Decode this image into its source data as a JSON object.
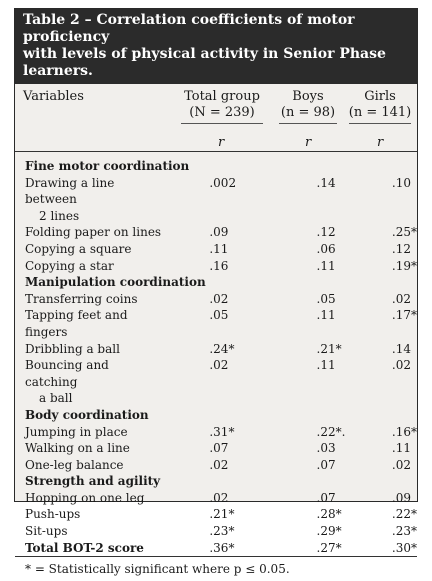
{
  "title_lines": [
    "Table 2 – Correlation coefficients of motor proficiency",
    "with levels of physical activity in Senior Phase learners."
  ],
  "header": {
    "variables": "Variables",
    "total_group": "Total group",
    "total_n": "(N = 239)",
    "boys": "Boys",
    "boys_n": "(n = 98)",
    "girls": "Girls",
    "girls_n": "(n = 141)",
    "r": "r"
  },
  "sections": [
    {
      "title": "Fine motor coordination",
      "rows": [
        {
          "label": "Drawing a line between",
          "label2": "2 lines",
          "total": ".002",
          "boys": ".14",
          "girls": ".10"
        },
        {
          "label": "Folding paper on lines",
          "total": ".09",
          "boys": ".12",
          "girls": ".25*"
        },
        {
          "label": "Copying a square",
          "total": ".11",
          "boys": ".06",
          "girls": ".12"
        },
        {
          "label": "Copying a star",
          "total": ".16",
          "boys": ".11",
          "girls": ".19*"
        }
      ]
    },
    {
      "title": "Manipulation coordination",
      "rows": [
        {
          "label": "Transferring coins",
          "total": ".02",
          "boys": ".05",
          "girls": ".02"
        },
        {
          "label": "Tapping feet and fingers",
          "total": ".05",
          "boys": ".11",
          "girls": ".17*"
        },
        {
          "label": "Dribbling a ball",
          "total": ".24*",
          "boys": ".21*",
          "girls": ".14"
        },
        {
          "label": "Bouncing and catching",
          "label2": "a ball",
          "total": ".02",
          "boys": ".11",
          "girls": ".02"
        }
      ]
    },
    {
      "title": "Body coordination",
      "rows": [
        {
          "label": "Jumping in place",
          "total": ".31*",
          "boys": ".22*.",
          "girls": ".16*"
        },
        {
          "label": "Walking on a line",
          "total": ".07",
          "boys": ".03",
          "girls": ".11"
        },
        {
          "label": "One-leg balance",
          "total": ".02",
          "boys": ".07",
          "girls": ".02"
        }
      ]
    },
    {
      "title": "Strength and agility",
      "rows": [
        {
          "label": "Hopping on one leg",
          "total": ".02",
          "boys": ".07",
          "girls": ".09"
        },
        {
          "label": "Push-ups",
          "total": ".21*",
          "boys": ".28*",
          "girls": ".22*"
        },
        {
          "label": "Sit-ups",
          "total": ".23*",
          "boys": ".29*",
          "girls": ".23*"
        }
      ]
    }
  ],
  "total_row": {
    "label": "Total BOT-2 score",
    "total": ".36*",
    "boys": ".27*",
    "girls": ".30*"
  },
  "footnote": "* = Statistically significant where p ≤ 0.05."
}
